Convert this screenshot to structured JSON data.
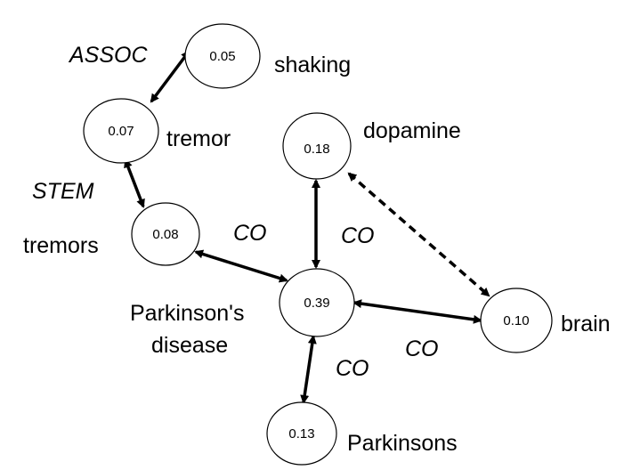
{
  "nodes": {
    "shaking": {
      "value": "0.05",
      "label": "shaking"
    },
    "tremor": {
      "value": "0.07",
      "label": "tremor"
    },
    "tremors": {
      "value": "0.08",
      "label": "tremors"
    },
    "dopamine": {
      "value": "0.18",
      "label": "dopamine"
    },
    "parkinsons_disease": {
      "value": "0.39",
      "label_line1": "Parkinson's",
      "label_line2": "disease"
    },
    "brain": {
      "value": "0.10",
      "label": "brain"
    },
    "parkinsons": {
      "value": "0.13",
      "label": "Parkinsons"
    }
  },
  "edges": {
    "shaking_tremor": {
      "label": "ASSOC",
      "style": "solid"
    },
    "tremor_tremors": {
      "label": "STEM",
      "style": "solid"
    },
    "tremors_pd": {
      "label": "CO",
      "style": "solid"
    },
    "dopamine_pd": {
      "label": "CO",
      "style": "solid"
    },
    "pd_brain": {
      "label": "CO",
      "style": "solid"
    },
    "pd_parkinsons": {
      "label": "CO",
      "style": "solid"
    },
    "dopamine_brain": {
      "label": "",
      "style": "dashed"
    }
  },
  "colors": {
    "stroke": "#000000",
    "fill": "#ffffff"
  }
}
